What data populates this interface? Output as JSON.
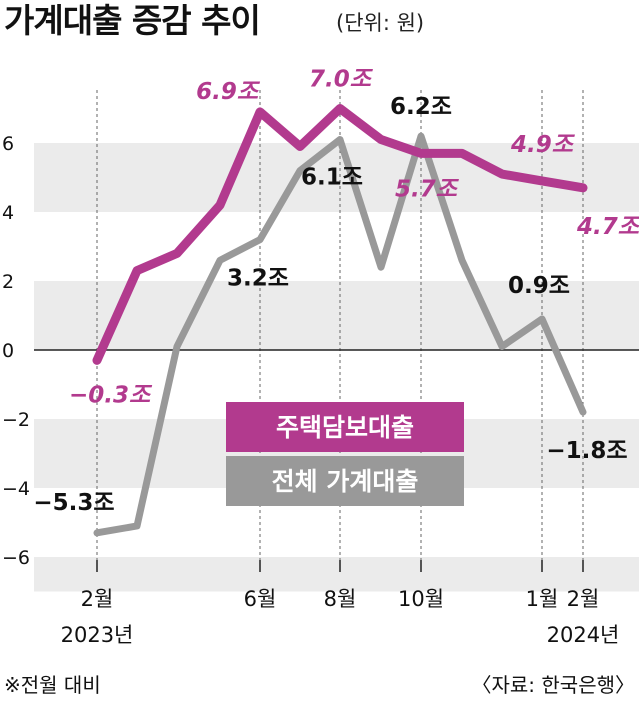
{
  "title": "가계대출 증감 추이",
  "unit": "(단위: 원)",
  "footnote": "※전월 대비",
  "source": "〈자료: 한국은행〉",
  "colors": {
    "mortgage": "#b23a8e",
    "total": "#999999",
    "band": "#ebebeb",
    "label_mortgage": "#b23a8e",
    "label_total": "#111111"
  },
  "chart_data": {
    "type": "line",
    "x": [
      "2023-02",
      "2023-03",
      "2023-04",
      "2023-05",
      "2023-06",
      "2023-07",
      "2023-08",
      "2023-09",
      "2023-10",
      "2023-11",
      "2023-12",
      "2024-01",
      "2024-02"
    ],
    "ylim": [
      -6,
      7.5
    ],
    "yticks": [
      -6,
      -4,
      -2,
      0,
      2,
      4,
      6
    ],
    "ytick_labels": [
      "−6",
      "−4",
      "−2",
      "0",
      "2",
      "4",
      "6"
    ],
    "grid_bands": true,
    "xticks": [
      {
        "x": "2023-02",
        "label": "2월",
        "sub": "2023년"
      },
      {
        "x": "2023-06",
        "label": "6월",
        "sub": ""
      },
      {
        "x": "2023-08",
        "label": "8월",
        "sub": ""
      },
      {
        "x": "2023-10",
        "label": "10월",
        "sub": ""
      },
      {
        "x": "2024-01",
        "label": "1월",
        "sub": ""
      },
      {
        "x": "2024-02",
        "label": "2월",
        "sub": "2024년"
      }
    ],
    "series": [
      {
        "key": "mortgage",
        "name": "주택담보대출",
        "values": [
          -0.3,
          2.3,
          2.8,
          4.2,
          6.9,
          5.9,
          7.0,
          6.1,
          5.7,
          5.7,
          5.1,
          4.9,
          4.7
        ],
        "labels": [
          {
            "x": "2023-02",
            "text": "−0.3조"
          },
          {
            "x": "2023-06",
            "text": "6.9조"
          },
          {
            "x": "2023-08",
            "text": "7.0조"
          },
          {
            "x": "2023-10",
            "text": "5.7조"
          },
          {
            "x": "2024-01",
            "text": "4.9조"
          },
          {
            "x": "2024-02",
            "text": "4.7조"
          }
        ]
      },
      {
        "key": "total",
        "name": "전체 가계대출",
        "values": [
          -5.3,
          -5.1,
          0.1,
          2.6,
          3.2,
          5.2,
          6.1,
          2.4,
          6.2,
          2.6,
          0.1,
          0.9,
          -1.8
        ],
        "labels": [
          {
            "x": "2023-02",
            "text": "−5.3조"
          },
          {
            "x": "2023-06",
            "text": "3.2조"
          },
          {
            "x": "2023-08",
            "text": "6.1조"
          },
          {
            "x": "2023-10",
            "text": "6.2조"
          },
          {
            "x": "2024-01",
            "text": "0.9조"
          },
          {
            "x": "2024-02",
            "text": "−1.8조"
          }
        ]
      }
    ]
  }
}
